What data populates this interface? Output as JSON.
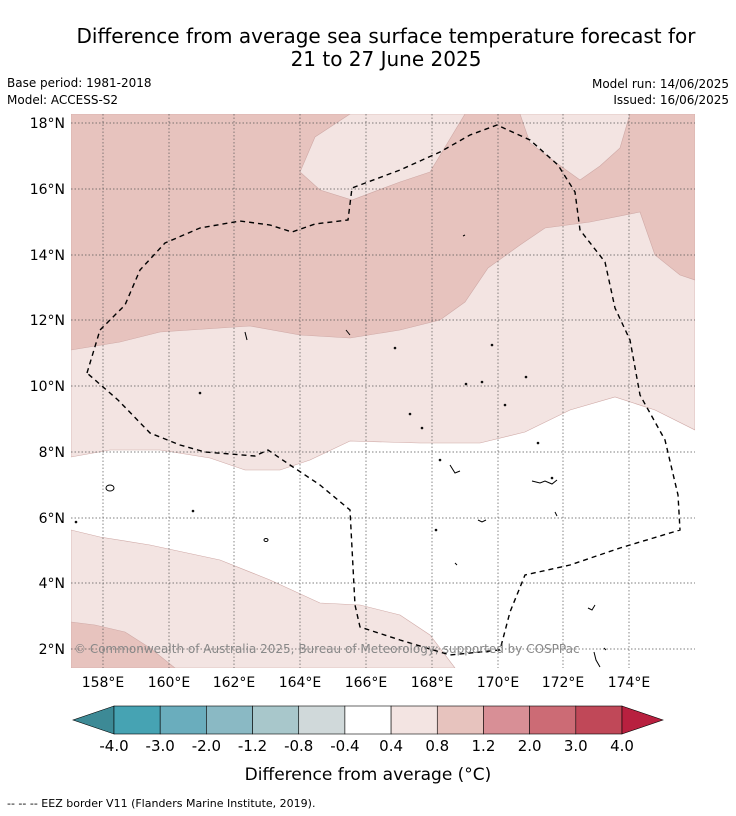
{
  "title_line1": "Difference from average sea surface temperature forecast for",
  "title_line2": "21 to 27 June 2025",
  "base_period": "Base period: 1981-2018",
  "model": "Model: ACCESS-S2",
  "model_run": "Model run: 14/06/2025",
  "issued": "Issued: 16/06/2025",
  "lat_labels": [
    "2°N",
    "4°N",
    "6°N",
    "8°N",
    "10°N",
    "12°N",
    "14°N",
    "16°N",
    "18°N"
  ],
  "lon_labels": [
    "158°E",
    "160°E",
    "162°E",
    "164°E",
    "166°E",
    "168°E",
    "170°E",
    "172°E",
    "174°E"
  ],
  "copyright": "© Commonwealth of Australia 2025, Bureau of Meteorology; supported by COSPPac",
  "colorbar": {
    "ticks": [
      "-4.0",
      "-3.0",
      "-2.0",
      "-1.2",
      "-0.8",
      "-0.4",
      "0.4",
      "0.8",
      "1.2",
      "2.0",
      "3.0",
      "4.0"
    ],
    "colors": [
      "#46a3b3",
      "#6aadbd",
      "#8ab9c4",
      "#a8c7cb",
      "#d0d9da",
      "#ffffff",
      "#f3e4e2",
      "#e7c3be",
      "#d88f96",
      "#cc6b75",
      "#c04858"
    ],
    "under_color": "#3d8a96",
    "over_color": "#b8203f",
    "label": "Difference from average (°C)"
  },
  "footnote": "-- -- -- EEZ border V11 (Flanders Marine Institute, 2019)."
}
